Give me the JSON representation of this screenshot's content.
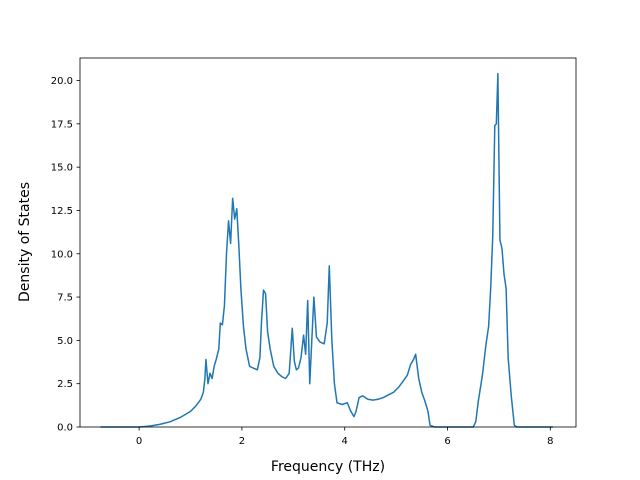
{
  "chart_data": {
    "type": "line",
    "title": "",
    "xlabel": "Frequency (THz)",
    "ylabel": "Density of States",
    "xlim": [
      -1.15,
      8.5
    ],
    "ylim": [
      0,
      21.3
    ],
    "xticks": [
      0,
      2,
      4,
      6,
      8
    ],
    "xtick_labels": [
      "0",
      "2",
      "4",
      "6",
      "8"
    ],
    "yticks": [
      0,
      2.5,
      5,
      7.5,
      10,
      12.5,
      15,
      17.5,
      20
    ],
    "ytick_labels": [
      "0.0",
      "2.5",
      "5.0",
      "7.5",
      "10.0",
      "12.5",
      "15.0",
      "17.5",
      "20.0"
    ],
    "grid": false,
    "legend": "none",
    "series": [
      {
        "color": "#1f77b4",
        "points": [
          [
            -0.75,
            0
          ],
          [
            0,
            0
          ],
          [
            0.2,
            0.05
          ],
          [
            0.4,
            0.15
          ],
          [
            0.6,
            0.3
          ],
          [
            0.8,
            0.55
          ],
          [
            1.0,
            0.9
          ],
          [
            1.1,
            1.2
          ],
          [
            1.2,
            1.6
          ],
          [
            1.25,
            2.0
          ],
          [
            1.28,
            2.8
          ],
          [
            1.3,
            3.9
          ],
          [
            1.34,
            2.5
          ],
          [
            1.38,
            3.1
          ],
          [
            1.42,
            2.8
          ],
          [
            1.46,
            3.5
          ],
          [
            1.5,
            3.9
          ],
          [
            1.55,
            4.5
          ],
          [
            1.58,
            6.0
          ],
          [
            1.62,
            5.9
          ],
          [
            1.66,
            7.0
          ],
          [
            1.7,
            10.0
          ],
          [
            1.74,
            11.9
          ],
          [
            1.78,
            10.6
          ],
          [
            1.82,
            13.2
          ],
          [
            1.86,
            12.0
          ],
          [
            1.9,
            12.6
          ],
          [
            1.94,
            10.5
          ],
          [
            1.98,
            8.0
          ],
          [
            2.03,
            5.8
          ],
          [
            2.08,
            4.5
          ],
          [
            2.15,
            3.5
          ],
          [
            2.22,
            3.4
          ],
          [
            2.3,
            3.3
          ],
          [
            2.35,
            4.0
          ],
          [
            2.38,
            6.0
          ],
          [
            2.42,
            7.9
          ],
          [
            2.46,
            7.7
          ],
          [
            2.5,
            5.5
          ],
          [
            2.55,
            4.5
          ],
          [
            2.62,
            3.5
          ],
          [
            2.7,
            3.1
          ],
          [
            2.78,
            2.9
          ],
          [
            2.85,
            2.8
          ],
          [
            2.92,
            3.1
          ],
          [
            2.98,
            5.7
          ],
          [
            3.02,
            3.8
          ],
          [
            3.06,
            3.3
          ],
          [
            3.1,
            3.4
          ],
          [
            3.15,
            4.0
          ],
          [
            3.2,
            5.3
          ],
          [
            3.24,
            4.2
          ],
          [
            3.28,
            7.3
          ],
          [
            3.32,
            2.5
          ],
          [
            3.36,
            5.0
          ],
          [
            3.4,
            7.5
          ],
          [
            3.45,
            5.2
          ],
          [
            3.52,
            4.9
          ],
          [
            3.6,
            4.8
          ],
          [
            3.66,
            6.0
          ],
          [
            3.7,
            9.3
          ],
          [
            3.75,
            5.0
          ],
          [
            3.8,
            2.5
          ],
          [
            3.85,
            1.4
          ],
          [
            3.95,
            1.3
          ],
          [
            4.05,
            1.4
          ],
          [
            4.12,
            0.9
          ],
          [
            4.18,
            0.6
          ],
          [
            4.22,
            0.9
          ],
          [
            4.28,
            1.7
          ],
          [
            4.35,
            1.8
          ],
          [
            4.45,
            1.6
          ],
          [
            4.55,
            1.55
          ],
          [
            4.65,
            1.6
          ],
          [
            4.75,
            1.7
          ],
          [
            4.85,
            1.85
          ],
          [
            4.95,
            2.0
          ],
          [
            5.05,
            2.3
          ],
          [
            5.15,
            2.7
          ],
          [
            5.22,
            3.0
          ],
          [
            5.28,
            3.6
          ],
          [
            5.34,
            3.9
          ],
          [
            5.38,
            4.2
          ],
          [
            5.44,
            2.8
          ],
          [
            5.5,
            2.0
          ],
          [
            5.56,
            1.5
          ],
          [
            5.62,
            0.9
          ],
          [
            5.66,
            0.1
          ],
          [
            5.75,
            0
          ],
          [
            6.5,
            0
          ],
          [
            6.55,
            0.3
          ],
          [
            6.6,
            1.5
          ],
          [
            6.68,
            3.0
          ],
          [
            6.75,
            4.8
          ],
          [
            6.8,
            5.8
          ],
          [
            6.84,
            8.0
          ],
          [
            6.88,
            11.0
          ],
          [
            6.92,
            17.4
          ],
          [
            6.95,
            17.5
          ],
          [
            6.98,
            20.4
          ],
          [
            7.02,
            10.8
          ],
          [
            7.06,
            10.3
          ],
          [
            7.1,
            8.8
          ],
          [
            7.14,
            8.0
          ],
          [
            7.18,
            4.0
          ],
          [
            7.24,
            1.8
          ],
          [
            7.3,
            0.1
          ],
          [
            7.35,
            0
          ],
          [
            8.05,
            0
          ]
        ]
      }
    ]
  }
}
